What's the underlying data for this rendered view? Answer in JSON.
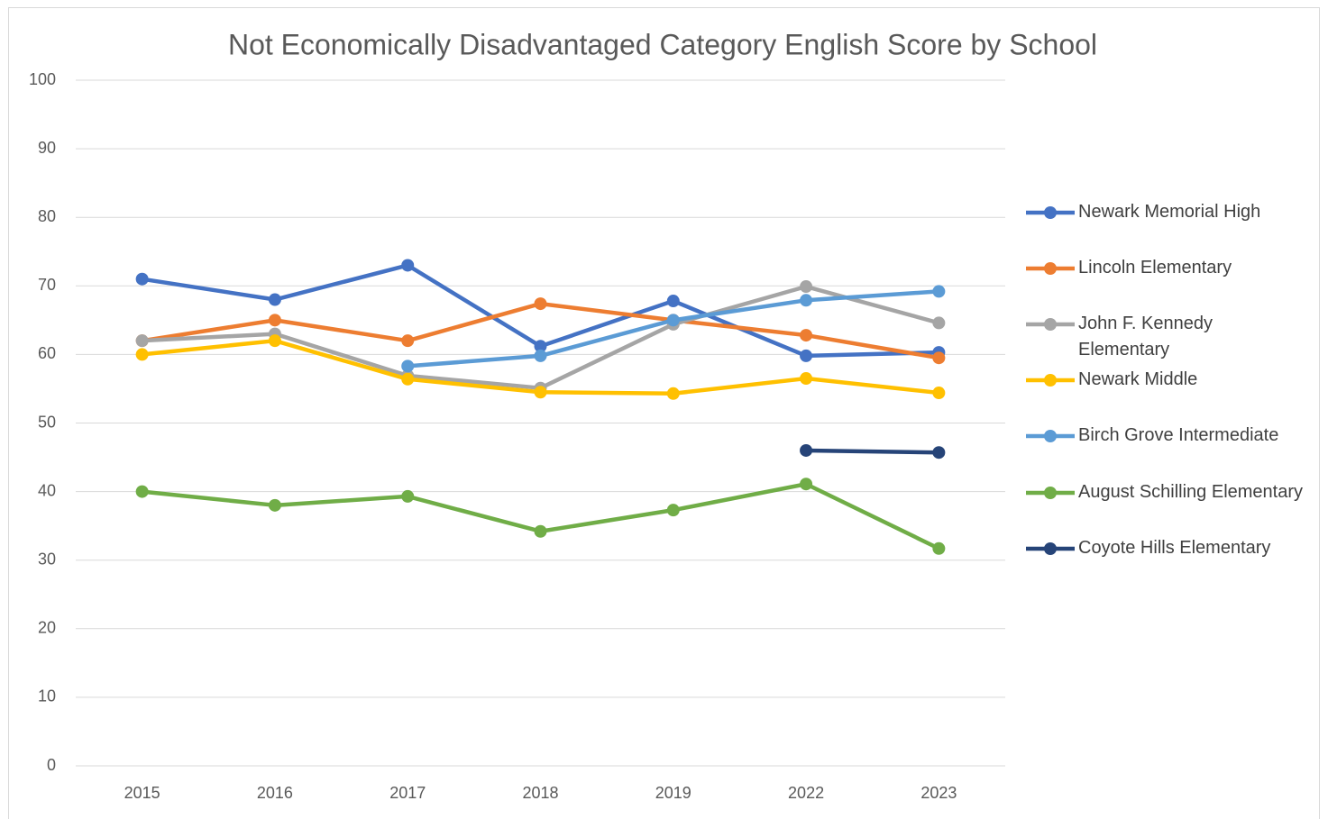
{
  "chart_data": {
    "type": "line",
    "title": "Not Economically Disadvantaged Category English Score by School",
    "categories": [
      "2015",
      "2016",
      "2017",
      "2018",
      "2019",
      "2022",
      "2023"
    ],
    "series": [
      {
        "name": "Newark Memorial High",
        "color": "#4472c4",
        "values": [
          71,
          68,
          73,
          61.2,
          67.8,
          59.8,
          60.3
        ]
      },
      {
        "name": "Lincoln Elementary",
        "color": "#ed7d31",
        "values": [
          62,
          65,
          62,
          67.4,
          65,
          62.8,
          59.5
        ]
      },
      {
        "name": "John F. Kennedy Elementary",
        "color": "#a5a5a5",
        "values": [
          62,
          63,
          56.9,
          55.1,
          64.4,
          69.9,
          64.6
        ]
      },
      {
        "name": "Newark Middle",
        "color": "#ffc000",
        "values": [
          60,
          62,
          56.4,
          54.5,
          54.3,
          56.5,
          54.4
        ]
      },
      {
        "name": "Birch Grove Intermediate",
        "color": "#5b9bd5",
        "values": [
          null,
          null,
          58.3,
          59.8,
          65,
          67.9,
          69.2
        ]
      },
      {
        "name": "August Schilling Elementary",
        "color": "#70ad47",
        "values": [
          40,
          38,
          39.3,
          34.2,
          37.3,
          41.1,
          31.7
        ]
      },
      {
        "name": "Coyote Hills Elementary",
        "color": "#264478",
        "values": [
          null,
          null,
          null,
          null,
          null,
          46,
          45.7
        ]
      }
    ],
    "ylim": [
      0,
      100
    ],
    "yticks": [
      0,
      10,
      20,
      30,
      40,
      50,
      60,
      70,
      80,
      90,
      100
    ],
    "grid": true,
    "legend": "right"
  }
}
